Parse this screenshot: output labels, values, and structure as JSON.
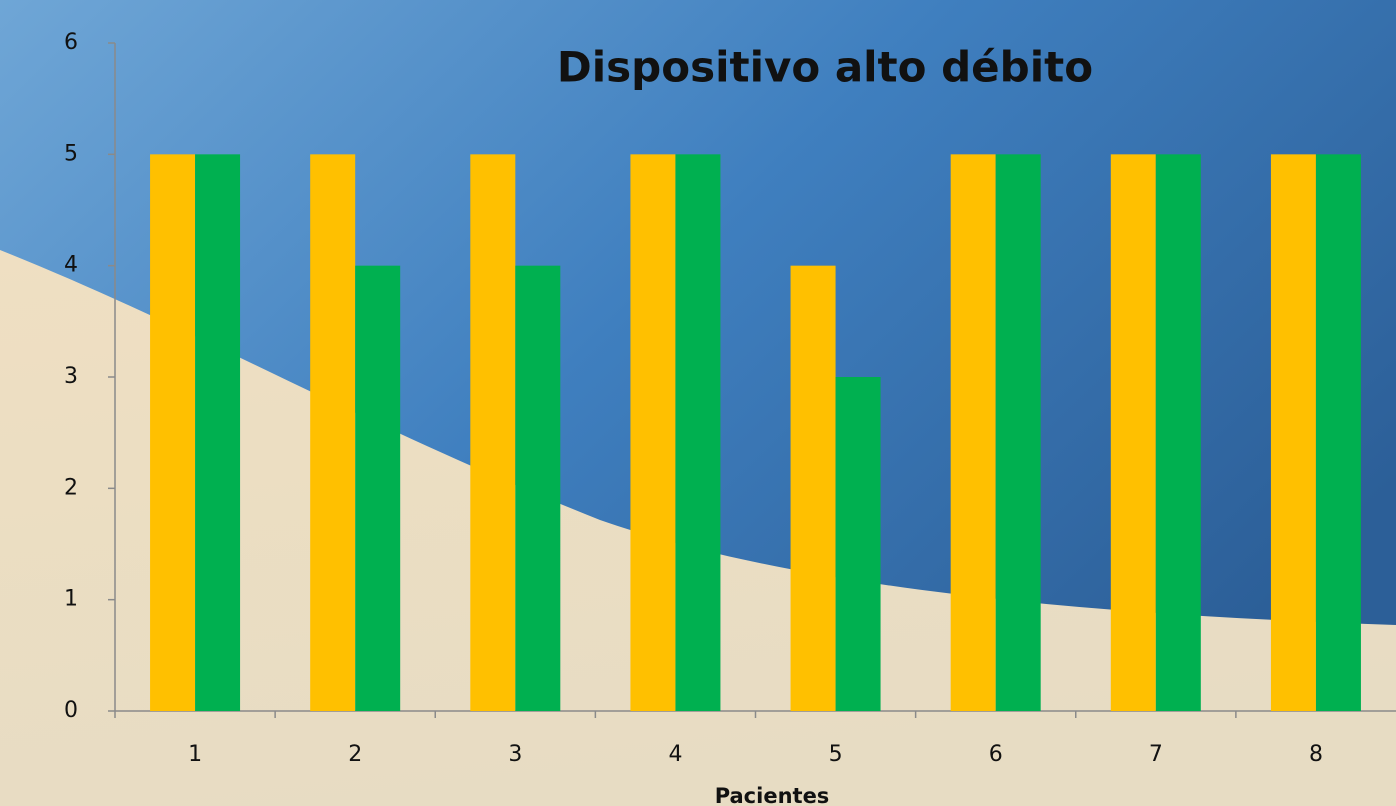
{
  "chart_data": {
    "type": "bar",
    "title": "Dispositivo alto débito",
    "x_label": "Pacientes",
    "categories": [
      "1",
      "2",
      "3",
      "4",
      "5",
      "6",
      "7",
      "8"
    ],
    "series": [
      {
        "color": "#ffc000",
        "values": [
          5,
          5,
          5,
          5,
          4,
          5,
          5,
          5
        ]
      },
      {
        "color": "#00b050",
        "values": [
          5,
          4,
          4,
          5,
          3,
          5,
          5,
          5
        ]
      }
    ],
    "ylim": [
      0,
      6
    ],
    "yticks": [
      0,
      1,
      2,
      3,
      4,
      5,
      6
    ],
    "grid": false
  }
}
